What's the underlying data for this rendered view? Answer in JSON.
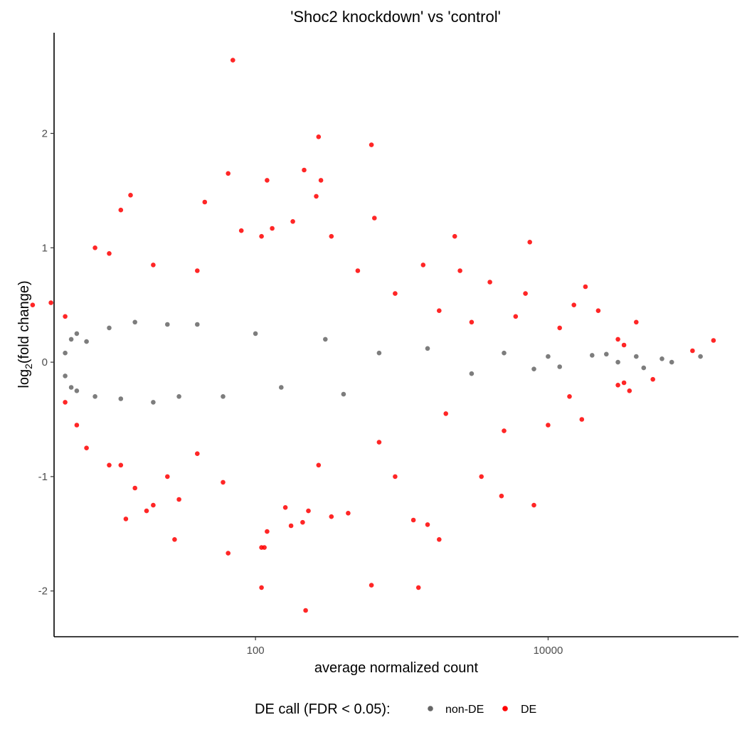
{
  "chart_data": {
    "type": "scatter",
    "title": "'Shoc2 knockdown' vs 'control'",
    "xlabel": "average normalized count",
    "ylabel_main": "log",
    "ylabel_sub": "2",
    "ylabel_rest": "(fold change)",
    "x_scale": "log10",
    "xlim": [
      4.2,
      200000
    ],
    "ylim": [
      -2.4,
      2.88
    ],
    "x_ticks": [
      100,
      10000
    ],
    "x_tick_labels": [
      "100",
      "10000"
    ],
    "y_ticks": [
      -2,
      -1,
      0,
      1,
      2
    ],
    "y_tick_labels": [
      "-2",
      "-1",
      "0",
      "1",
      "2"
    ],
    "grid": false,
    "legend": {
      "title": "DE call (FDR < 0.05):",
      "position": "bottom",
      "items": [
        {
          "label": "non-DE",
          "color": "#666666"
        },
        {
          "label": "DE",
          "color": "#ff0000"
        }
      ]
    },
    "series": [
      {
        "name": "non-DE",
        "color": "#666666",
        "points": [
          [
            5,
            0.08
          ],
          [
            5,
            -0.12
          ],
          [
            5.5,
            0.2
          ],
          [
            5.5,
            -0.22
          ],
          [
            6,
            0.25
          ],
          [
            6,
            -0.25
          ],
          [
            7,
            0.18
          ],
          [
            8,
            -0.3
          ],
          [
            10,
            0.3
          ],
          [
            12,
            -0.32
          ],
          [
            15,
            0.35
          ],
          [
            20,
            -0.35
          ],
          [
            25,
            0.33
          ],
          [
            30,
            -0.3
          ],
          [
            40,
            0.33
          ],
          [
            60,
            -0.3
          ],
          [
            100,
            0.25
          ],
          [
            150,
            -0.22
          ],
          [
            300,
            0.2
          ],
          [
            400,
            -0.28
          ],
          [
            700,
            0.08
          ],
          [
            1500,
            0.12
          ],
          [
            3000,
            -0.1
          ],
          [
            5000,
            0.08
          ],
          [
            8000,
            -0.06
          ],
          [
            10000,
            0.05
          ],
          [
            12000,
            -0.04
          ],
          [
            20000,
            0.06
          ],
          [
            25000,
            0.07
          ],
          [
            30000,
            0.0
          ],
          [
            40000,
            0.05
          ],
          [
            45000,
            -0.05
          ],
          [
            60000,
            0.03
          ],
          [
            70000,
            0.0
          ],
          [
            110000,
            0.05
          ]
        ]
      },
      {
        "name": "DE",
        "color": "#ff0000",
        "points": [
          [
            70,
            2.64
          ],
          [
            270,
            1.97
          ],
          [
            620,
            1.9
          ],
          [
            65,
            1.65
          ],
          [
            215,
            1.68
          ],
          [
            280,
            1.59
          ],
          [
            120,
            1.59
          ],
          [
            14,
            1.46
          ],
          [
            12,
            1.33
          ],
          [
            45,
            1.4
          ],
          [
            260,
            1.45
          ],
          [
            650,
            1.26
          ],
          [
            180,
            1.23
          ],
          [
            130,
            1.17
          ],
          [
            80,
            1.15
          ],
          [
            110,
            1.1
          ],
          [
            330,
            1.1
          ],
          [
            2300,
            1.1
          ],
          [
            7500,
            1.05
          ],
          [
            8,
            1.0
          ],
          [
            10,
            0.95
          ],
          [
            20,
            0.85
          ],
          [
            40,
            0.8
          ],
          [
            500,
            0.8
          ],
          [
            1400,
            0.85
          ],
          [
            2500,
            0.8
          ],
          [
            4000,
            0.7
          ],
          [
            7000,
            0.6
          ],
          [
            15000,
            0.5
          ],
          [
            18000,
            0.66
          ],
          [
            40000,
            0.35
          ],
          [
            135000,
            0.19
          ],
          [
            97000,
            0.1
          ],
          [
            22000,
            0.45
          ],
          [
            3,
            0.5
          ],
          [
            5,
            0.4
          ],
          [
            4,
            0.52
          ],
          [
            900,
            0.6
          ],
          [
            1800,
            0.45
          ],
          [
            3000,
            0.35
          ],
          [
            6000,
            0.4
          ],
          [
            12000,
            0.3
          ],
          [
            30000,
            0.2
          ],
          [
            33000,
            0.15
          ],
          [
            5,
            -0.35
          ],
          [
            6,
            -0.55
          ],
          [
            7,
            -0.75
          ],
          [
            10,
            -0.9
          ],
          [
            12,
            -0.9
          ],
          [
            15,
            -1.1
          ],
          [
            25,
            -1.0
          ],
          [
            30,
            -1.2
          ],
          [
            20,
            -1.25
          ],
          [
            18,
            -1.3
          ],
          [
            13,
            -1.37
          ],
          [
            28,
            -1.55
          ],
          [
            65,
            -1.67
          ],
          [
            110,
            -1.62
          ],
          [
            115,
            -1.62
          ],
          [
            120,
            -1.48
          ],
          [
            110,
            -1.97
          ],
          [
            160,
            -1.27
          ],
          [
            175,
            -1.43
          ],
          [
            210,
            -1.4
          ],
          [
            230,
            -1.3
          ],
          [
            270,
            -0.9
          ],
          [
            330,
            -1.35
          ],
          [
            430,
            -1.32
          ],
          [
            620,
            -1.95
          ],
          [
            1300,
            -1.97
          ],
          [
            1800,
            -1.55
          ],
          [
            1500,
            -1.42
          ],
          [
            1200,
            -1.38
          ],
          [
            220,
            -2.17
          ],
          [
            4800,
            -1.17
          ],
          [
            8000,
            -1.25
          ],
          [
            3500,
            -1.0
          ],
          [
            900,
            -1.0
          ],
          [
            60,
            -1.05
          ],
          [
            40,
            -0.8
          ],
          [
            700,
            -0.7
          ],
          [
            5000,
            -0.6
          ],
          [
            10000,
            -0.55
          ],
          [
            17000,
            -0.5
          ],
          [
            30000,
            -0.2
          ],
          [
            52000,
            -0.15
          ],
          [
            36000,
            -0.25
          ],
          [
            33000,
            -0.18
          ],
          [
            2000,
            -0.45
          ],
          [
            14000,
            -0.3
          ]
        ]
      }
    ]
  }
}
